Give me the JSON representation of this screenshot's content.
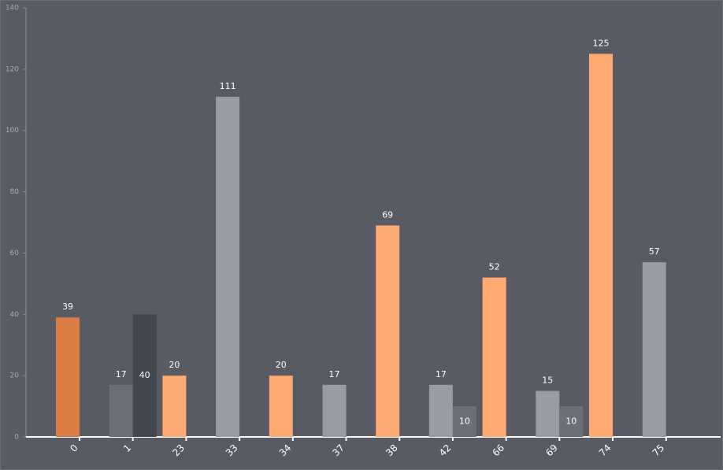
{
  "chart_data": {
    "type": "bar",
    "categories": [
      "0",
      "1",
      "23",
      "33",
      "34",
      "37",
      "38",
      "42",
      "66",
      "69",
      "74",
      "75"
    ],
    "series": [
      {
        "values": [
          39,
          17,
          20,
          111,
          20,
          17,
          69,
          17,
          52,
          15,
          125,
          57
        ],
        "colors": [
          "#db7c45",
          "#6c6f77",
          "#ffaa72",
          "#9a9ca4",
          "#ffaa72",
          "#9a9ca4",
          "#ffaa72",
          "#9a9ca4",
          "#ffaa72",
          "#9a9ca4",
          "#ffaa72",
          "#9a9ca4"
        ]
      },
      {
        "values": [
          null,
          40,
          null,
          null,
          null,
          null,
          null,
          10,
          null,
          10,
          null,
          null
        ],
        "colors": [
          null,
          "#45474e",
          null,
          null,
          null,
          null,
          null,
          "#6c6f77",
          null,
          "#6c6f77",
          null,
          null
        ]
      }
    ],
    "ylim": [
      0,
      140
    ],
    "yticks": [
      0,
      20,
      40,
      60,
      80,
      100,
      120,
      140
    ]
  }
}
